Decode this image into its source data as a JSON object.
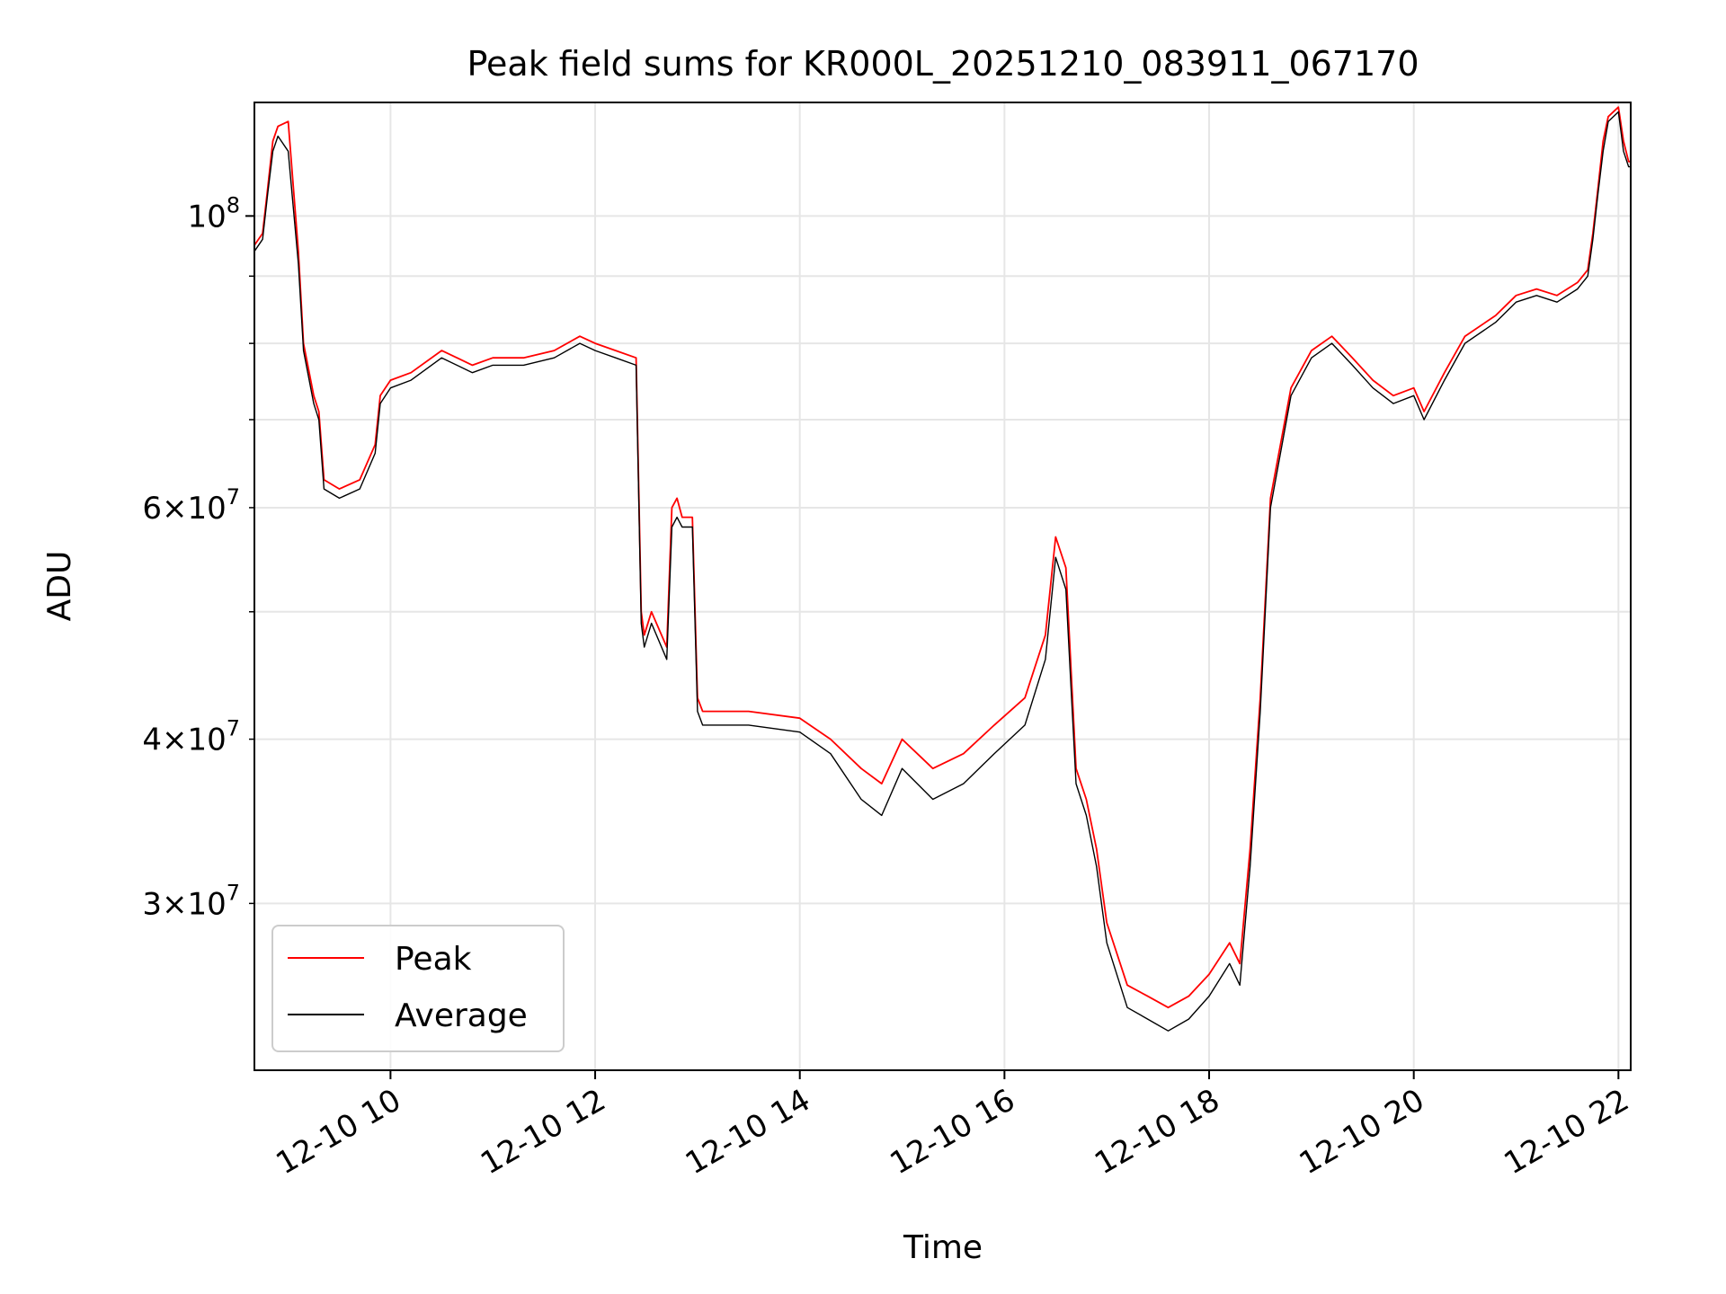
{
  "chart_data": {
    "type": "line",
    "title": "Peak field sums for KR000L_20251210_083911_067170",
    "xlabel": "Time",
    "ylabel": "ADU",
    "yscale": "log",
    "xlim": [
      8.67,
      22.12
    ],
    "ylim": [
      22400000,
      122000000
    ],
    "grid": true,
    "legend_position": "lower-left",
    "x_ticks": [
      {
        "value": 10,
        "label": "12-10 10"
      },
      {
        "value": 12,
        "label": "12-10 12"
      },
      {
        "value": 14,
        "label": "12-10 14"
      },
      {
        "value": 16,
        "label": "12-10 16"
      },
      {
        "value": 18,
        "label": "12-10 18"
      },
      {
        "value": 20,
        "label": "12-10 20"
      },
      {
        "value": 22,
        "label": "12-10 22"
      }
    ],
    "y_major_ticks": [
      {
        "value": 100000000,
        "base": "10",
        "exp": "8"
      }
    ],
    "y_minor_labeled_ticks": [
      {
        "value": 30000000,
        "mant": "3",
        "base": "10",
        "exp": "7"
      },
      {
        "value": 40000000,
        "mant": "4",
        "base": "10",
        "exp": "7"
      },
      {
        "value": 60000000,
        "mant": "6",
        "base": "10",
        "exp": "7"
      }
    ],
    "y_minor_unlabeled_ticks": [
      50000000,
      70000000,
      80000000,
      90000000
    ],
    "series": [
      {
        "name": "Peak",
        "color": "#ff0000"
      },
      {
        "name": "Average",
        "color": "#000000"
      }
    ],
    "x": [
      8.67,
      8.75,
      8.8,
      8.85,
      8.9,
      9.0,
      9.1,
      9.15,
      9.25,
      9.3,
      9.35,
      9.5,
      9.7,
      9.85,
      9.9,
      10.0,
      10.2,
      10.5,
      10.8,
      11.0,
      11.3,
      11.6,
      11.85,
      12.0,
      12.2,
      12.4,
      12.45,
      12.48,
      12.55,
      12.7,
      12.75,
      12.8,
      12.85,
      12.95,
      13.0,
      13.05,
      13.1,
      13.5,
      14.0,
      14.3,
      14.6,
      14.8,
      15.0,
      15.3,
      15.6,
      15.9,
      16.2,
      16.4,
      16.5,
      16.6,
      16.7,
      16.8,
      16.9,
      17.0,
      17.2,
      17.4,
      17.6,
      17.8,
      18.0,
      18.2,
      18.3,
      18.4,
      18.5,
      18.6,
      18.8,
      19.0,
      19.2,
      19.4,
      19.6,
      19.8,
      20.0,
      20.1,
      20.3,
      20.5,
      20.8,
      21.0,
      21.2,
      21.4,
      21.6,
      21.7,
      21.75,
      21.8,
      21.85,
      21.9,
      22.0,
      22.05,
      22.1,
      22.12
    ],
    "values_average": [
      94000000,
      96000000,
      104000000,
      112000000,
      115000000,
      112000000,
      92000000,
      79000000,
      72000000,
      70000000,
      62000000,
      61000000,
      62000000,
      66000000,
      72000000,
      74000000,
      75000000,
      78000000,
      76000000,
      77000000,
      77000000,
      78000000,
      80000000,
      79000000,
      78000000,
      77000000,
      49000000,
      47000000,
      49000000,
      46000000,
      58000000,
      59000000,
      58000000,
      58000000,
      42000000,
      41000000,
      41000000,
      41000000,
      40500000,
      39000000,
      36000000,
      35000000,
      38000000,
      36000000,
      37000000,
      39000000,
      41000000,
      46000000,
      55000000,
      52000000,
      37000000,
      35000000,
      32000000,
      28000000,
      25000000,
      24500000,
      24000000,
      24500000,
      25500000,
      27000000,
      26000000,
      32000000,
      42000000,
      60000000,
      73000000,
      78000000,
      80000000,
      77000000,
      74000000,
      72000000,
      73000000,
      70000000,
      75000000,
      80000000,
      83000000,
      86000000,
      87000000,
      86000000,
      88000000,
      90000000,
      96000000,
      104000000,
      112000000,
      118000000,
      120000000,
      112000000,
      109000000,
      109000000
    ],
    "values_peak": [
      95000000,
      97000000,
      105000000,
      114000000,
      117000000,
      118000000,
      94000000,
      80000000,
      73000000,
      71000000,
      63000000,
      62000000,
      63000000,
      67000000,
      73000000,
      75000000,
      76000000,
      79000000,
      77000000,
      78000000,
      78000000,
      79000000,
      81000000,
      80000000,
      79000000,
      78000000,
      50000000,
      48000000,
      50000000,
      47000000,
      60000000,
      61000000,
      59000000,
      59000000,
      43000000,
      42000000,
      42000000,
      42000000,
      41500000,
      40000000,
      38000000,
      37000000,
      40000000,
      38000000,
      39000000,
      41000000,
      43000000,
      48000000,
      57000000,
      54000000,
      38000000,
      36000000,
      33000000,
      29000000,
      26000000,
      25500000,
      25000000,
      25500000,
      26500000,
      28000000,
      27000000,
      33000000,
      43000000,
      61000000,
      74000000,
      79000000,
      81000000,
      78000000,
      75000000,
      73000000,
      74000000,
      71000000,
      76000000,
      81000000,
      84000000,
      87000000,
      88000000,
      87000000,
      89000000,
      91000000,
      97000000,
      105000000,
      114000000,
      119000000,
      121000000,
      114000000,
      110000000,
      110000000
    ]
  }
}
